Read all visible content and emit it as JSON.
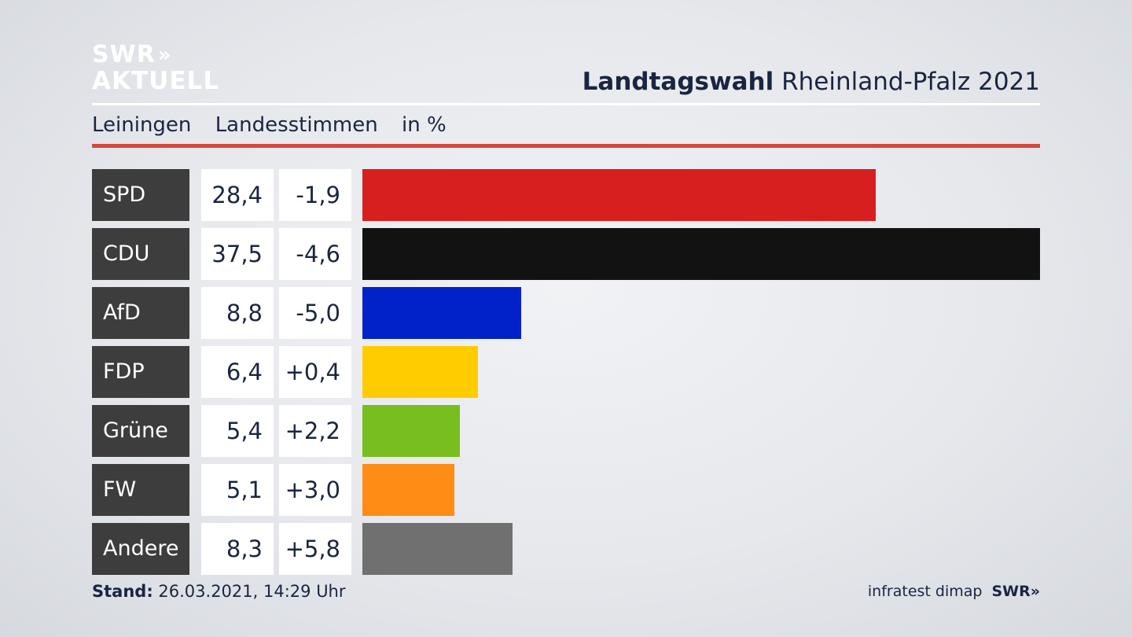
{
  "logo": {
    "line1": "SWR",
    "arrows": "»",
    "line2": "AKTUELL"
  },
  "title": {
    "bold": "Landtagswahl",
    "rest": "Rheinland-Pfalz 2021"
  },
  "subtitle": {
    "district": "Leiningen",
    "type": "Landesstimmen",
    "unit": "in %"
  },
  "footer": {
    "stand_label": "Stand:",
    "stand_value": "26.03.2021, 14:29 Uhr",
    "source": "infratest dimap",
    "brand": "SWR»"
  },
  "chart_data": {
    "type": "bar",
    "orientation": "horizontal",
    "title": "Landtagswahl Rheinland-Pfalz 2021",
    "unit": "in %",
    "xlim": [
      0,
      37.5
    ],
    "categories": [
      "SPD",
      "CDU",
      "AfD",
      "FDP",
      "Grüne",
      "FW",
      "Andere"
    ],
    "values": [
      28.4,
      37.5,
      8.8,
      6.4,
      5.4,
      5.1,
      8.3
    ],
    "value_labels": [
      "28,4",
      "37,5",
      "8,8",
      "6,4",
      "5,4",
      "5,1",
      "8,3"
    ],
    "change_labels": [
      "-1,9",
      "-4,6",
      "-5,0",
      "+0,4",
      "+2,2",
      "+3,0",
      "+5,8"
    ],
    "colors": [
      "#d71f1f",
      "#121212",
      "#0022c8",
      "#ffcc00",
      "#78be1e",
      "#ff8c14",
      "#707070"
    ]
  }
}
